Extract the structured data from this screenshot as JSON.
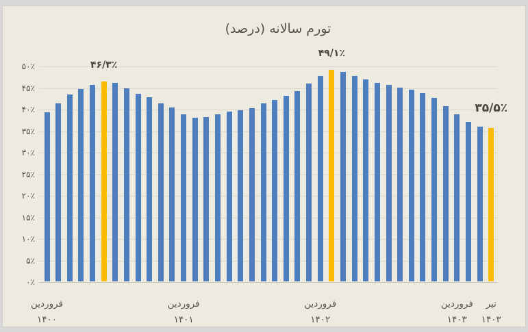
{
  "window": {
    "frame_color": "#d8d8d8",
    "plot_background": "#edebe0",
    "gridline_color": "#d9d6ca",
    "axis_line_color": "#c6c3b6",
    "text_color": "#55534b"
  },
  "chart_data": {
    "type": "bar",
    "title": "تورم سالانه (درصد)",
    "ylabel": "",
    "xlabel": "",
    "unit": "percent",
    "ylim": [
      0,
      50
    ],
    "y_tick_step": 5,
    "grid": true,
    "y_tick_labels_top_to_bottom": [
      "۵۰٪",
      "۴۵٪",
      "۴۰٪",
      "۳۵٪",
      "۳۰٪",
      "۲۵٪",
      "۲۰٪",
      "۱۵٪",
      "۱۰٪",
      "۵٪",
      "۰٪"
    ],
    "x_ticks": [
      {
        "month": "فروردین",
        "year": "۱۴۰۰",
        "bar_index": 0
      },
      {
        "month": "فروردین",
        "year": "۱۴۰۱",
        "bar_index": 12
      },
      {
        "month": "فروردین",
        "year": "۱۴۰۲",
        "bar_index": 24
      },
      {
        "month": "فروردین",
        "year": "۱۴۰۳",
        "bar_index": 36
      },
      {
        "month": "تیر",
        "year": "۱۴۰۳",
        "bar_index": 39
      }
    ],
    "values": [
      39.2,
      41.3,
      43.4,
      44.6,
      45.6,
      46.3,
      46.0,
      44.8,
      43.5,
      42.7,
      41.3,
      40.3,
      38.8,
      38.0,
      38.1,
      38.8,
      39.4,
      39.7,
      40.1,
      41.2,
      42.0,
      43.0,
      44.2,
      45.8,
      47.6,
      49.1,
      48.5,
      47.6,
      46.8,
      46.1,
      45.5,
      45.0,
      44.4,
      43.6,
      42.6,
      40.7,
      38.8,
      37.0,
      35.9,
      35.5
    ],
    "bar_color": "#4e7ebd",
    "highlight_color": "#fbbb04",
    "highlight_indices": [
      5,
      25,
      39
    ],
    "annotations": [
      {
        "text": "۴۶/۳٪",
        "value": 46.3,
        "bar_index": 5,
        "large": false
      },
      {
        "text": "۴۹/۱٪",
        "value": 49.1,
        "bar_index": 25,
        "large": false
      },
      {
        "text": "۳۵/۵٪",
        "value": 35.5,
        "bar_index": 39,
        "large": true
      }
    ],
    "legend": null
  }
}
